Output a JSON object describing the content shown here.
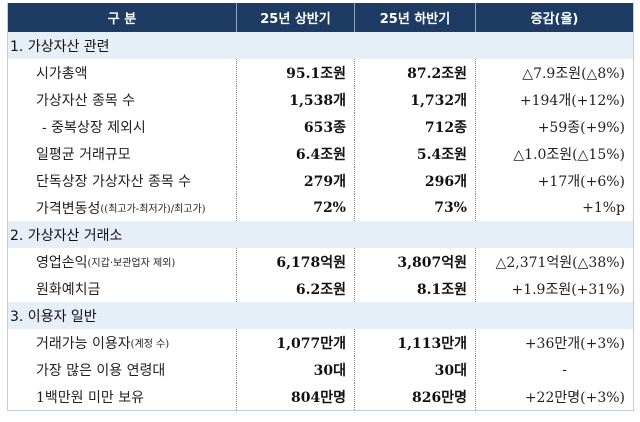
{
  "table": {
    "headers": [
      "구 분",
      "25년 상반기",
      "25년 하반기",
      "증감(율)"
    ],
    "sections": [
      {
        "title": "1. 가상자산 관련",
        "rows": [
          {
            "label": "시가총액",
            "label_note": "",
            "h1": "95.1조원",
            "h2": "87.2조원",
            "change": "△7.9조원(△8%)"
          },
          {
            "label": "가상자산 종목 수",
            "label_note": "",
            "h1": "1,538개",
            "h2": "1,732개",
            "change": "+194개(+12%)"
          },
          {
            "label": "- 중복상장 제외시",
            "label_note": "",
            "h1": "653종",
            "h2": "712종",
            "change": "+59종(+9%)"
          },
          {
            "label": "일평균 거래규모",
            "label_note": "",
            "h1": "6.4조원",
            "h2": "5.4조원",
            "change": "△1.0조원(△15%)"
          },
          {
            "label": "단독상장 가상자산 종목 수",
            "label_note": "",
            "h1": "279개",
            "h2": "296개",
            "change": "+17개(+6%)"
          },
          {
            "label": "가격변동성",
            "label_note": "((최고가-최저가)/최고가)",
            "h1": "72%",
            "h2": "73%",
            "change": "+1%p"
          }
        ]
      },
      {
        "title": "2. 가상자산 거래소",
        "rows": [
          {
            "label": "영업손익",
            "label_note": "(지갑·보관업자 제외)",
            "h1": "6,178억원",
            "h2": "3,807억원",
            "change": "△2,371억원(△38%)"
          },
          {
            "label": "원화예치금",
            "label_note": "",
            "h1": "6.2조원",
            "h2": "8.1조원",
            "change": "+1.9조원(+31%)"
          }
        ]
      },
      {
        "title": "3. 이용자 일반",
        "rows": [
          {
            "label": "거래가능 이용자",
            "label_note": "(계정 수)",
            "h1": "1,077만개",
            "h2": "1,113만개",
            "change": "+36만개(+3%)"
          },
          {
            "label": "가장 많은 이용 연령대",
            "label_note": "",
            "h1": "30대",
            "h2": "30대",
            "change": "-"
          },
          {
            "label": "1백만원 미만 보유",
            "label_note": "",
            "h1": "804만명",
            "h2": "826만명",
            "change": "+22만명(+3%)"
          }
        ]
      }
    ]
  },
  "colors": {
    "header_bg": "#1d3b63",
    "section_bg": "#e6eef8",
    "border": "#b9cde6"
  }
}
